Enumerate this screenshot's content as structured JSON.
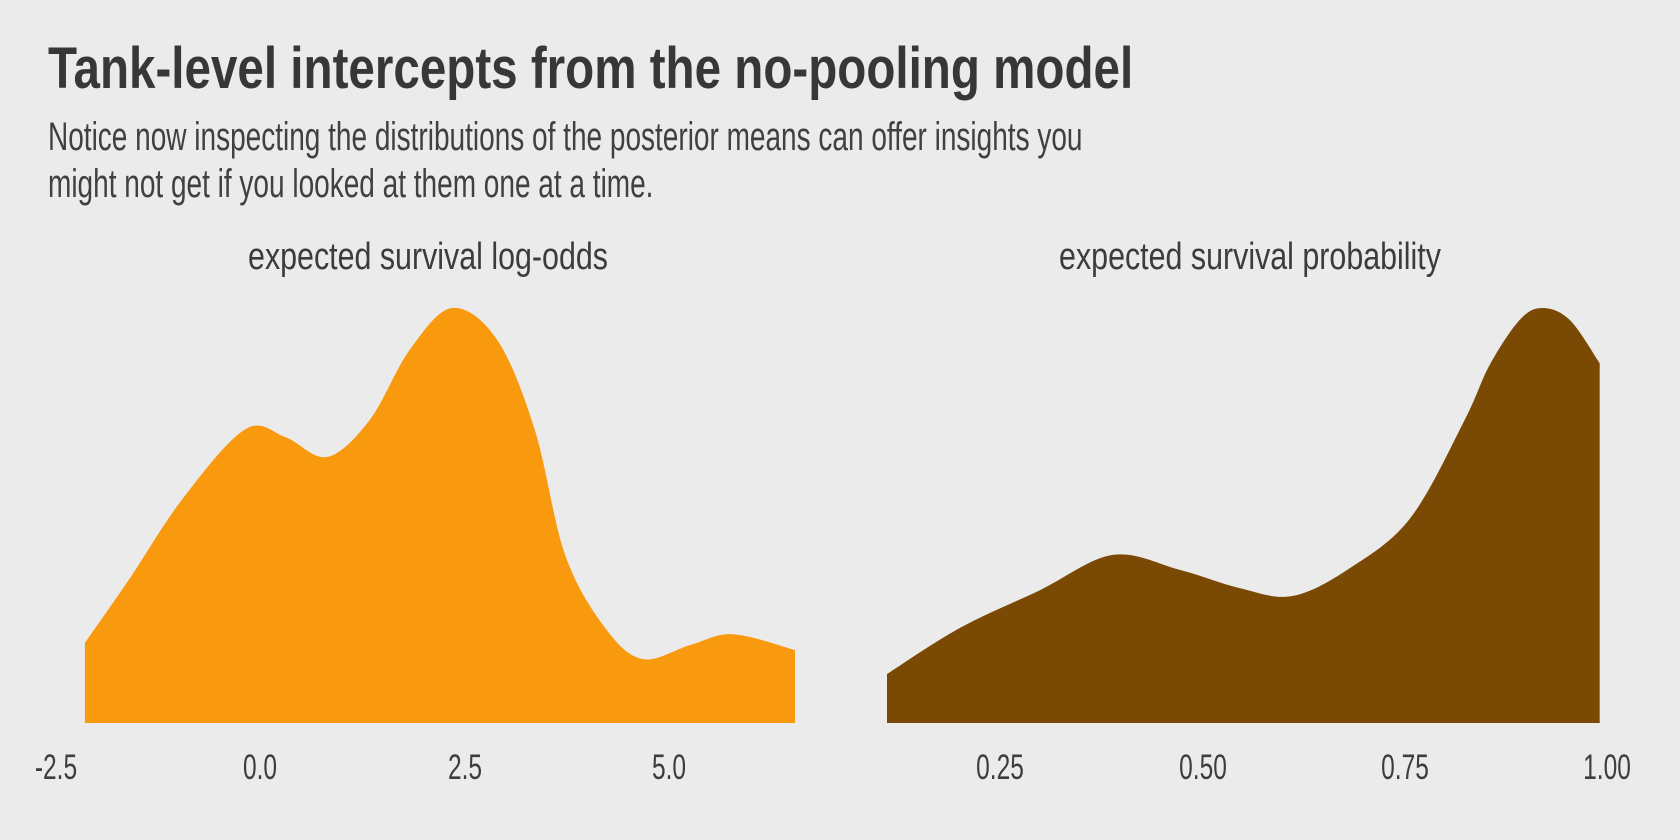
{
  "figure": {
    "title": "Tank-level intercepts from the no-pooling model",
    "subtitle_line1": "Notice now inspecting the distributions of the posterior means can offer insights you",
    "subtitle_line2": "might not get if you looked at them one at a time.",
    "background_color": "#EBEBEB",
    "title_color": "#373737",
    "subtitle_color": "#404040",
    "facet_label_color": "#3C3C3C",
    "tick_label_color": "#3D3D3D"
  },
  "chart_data": [
    {
      "type": "area",
      "subtype": "kernel-density",
      "title": "expected survival log-odds",
      "fill": "#F9990E",
      "xlim": [
        -2.59,
        6.7
      ],
      "x_ticks": [
        "-2.5",
        "0.0",
        "2.5",
        "5.0"
      ],
      "x_tick_values": [
        -2.5,
        0.0,
        2.5,
        5.0
      ],
      "x": [
        -2.14,
        -1.59,
        -0.94,
        -0.18,
        0.31,
        0.82,
        1.34,
        1.83,
        2.35,
        2.9,
        3.36,
        3.73,
        4.22,
        4.68,
        5.26,
        5.78,
        6.54
      ],
      "density_relative": [
        0.193,
        0.349,
        0.542,
        0.708,
        0.689,
        0.641,
        0.73,
        0.899,
        1.0,
        0.923,
        0.706,
        0.405,
        0.229,
        0.154,
        0.188,
        0.214,
        0.176
      ],
      "density_scale": "relative, shared y-axis, max = 1",
      "grid": false,
      "legend": false,
      "edge_cut": "vertical edges at both data extremes"
    },
    {
      "type": "area",
      "subtype": "kernel-density",
      "title": "expected survival probability",
      "fill": "#7A4A05",
      "xlim": [
        0.1,
        1.04
      ],
      "x_ticks": [
        "0.25",
        "0.50",
        "0.75",
        "1.00"
      ],
      "x_tick_values": [
        0.25,
        0.5,
        0.75,
        1.0
      ],
      "x": [
        0.11,
        0.2,
        0.299,
        0.389,
        0.472,
        0.546,
        0.611,
        0.682,
        0.757,
        0.824,
        0.855,
        0.892,
        0.92,
        0.954,
        0.991
      ],
      "density_relative": [
        0.118,
        0.229,
        0.32,
        0.405,
        0.369,
        0.325,
        0.306,
        0.373,
        0.494,
        0.73,
        0.863,
        0.971,
        1.0,
        0.971,
        0.867
      ],
      "density_scale": "relative, shared y-axis, max = 1",
      "grid": false,
      "legend": false,
      "edge_cut": "vertical edges at both data extremes"
    }
  ]
}
